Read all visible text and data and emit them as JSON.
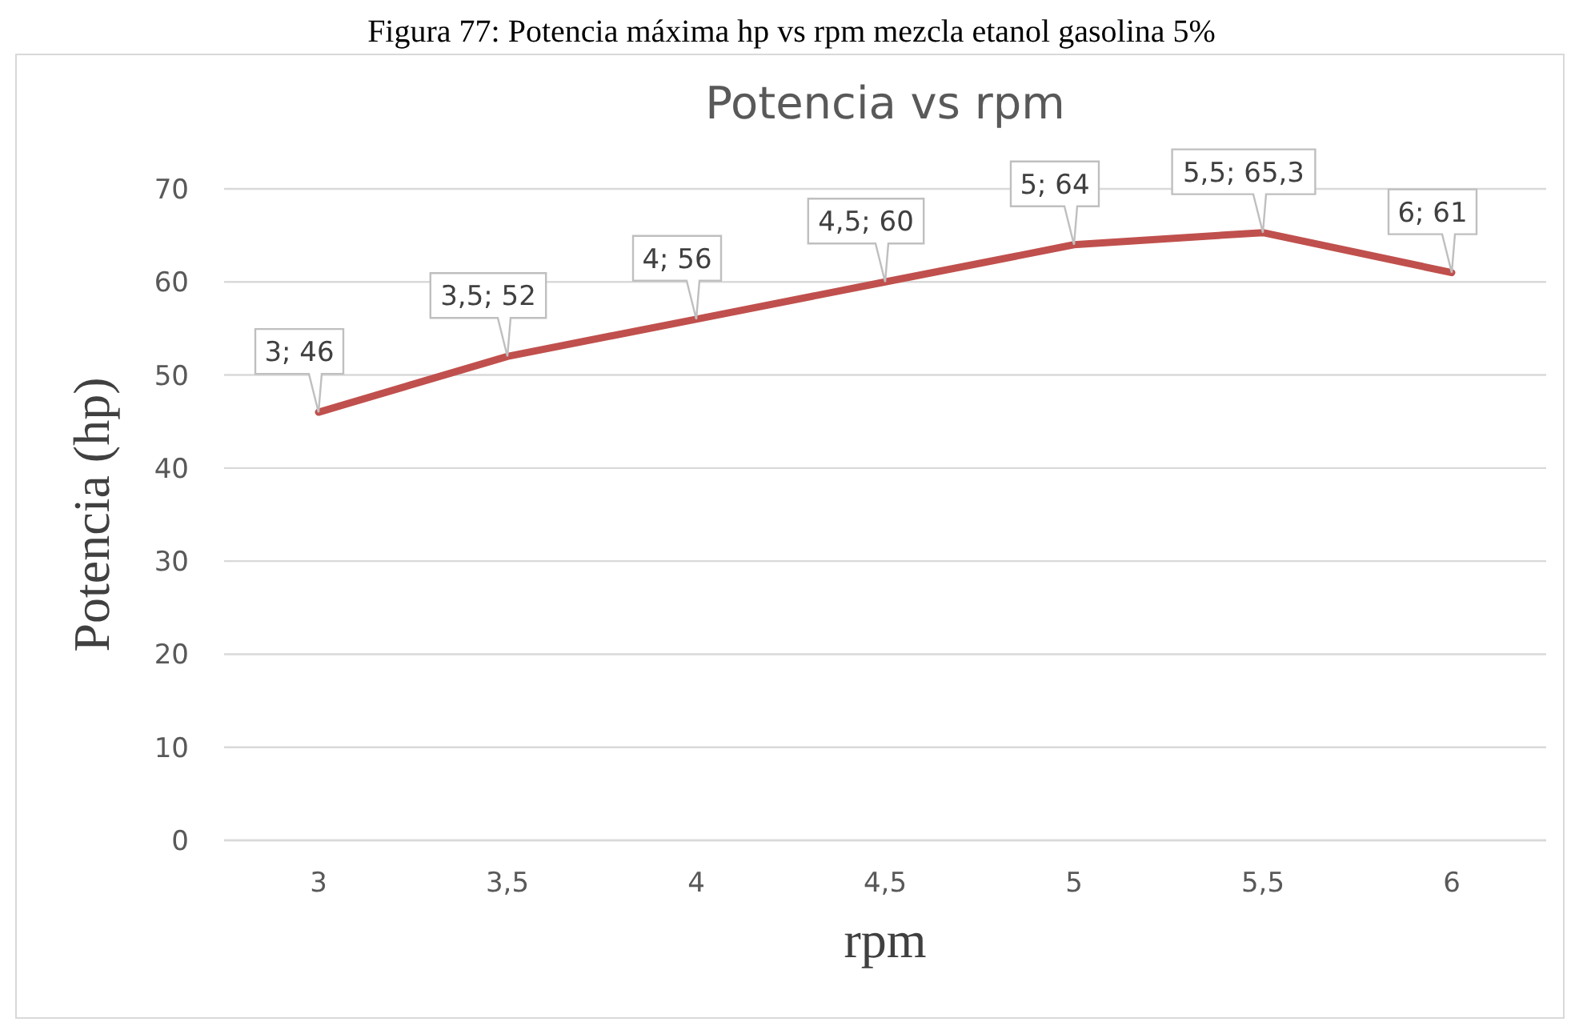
{
  "chart_data": {
    "type": "line",
    "title": "Potencia vs rpm",
    "xlabel": "rpm",
    "ylabel": "Potencia (hp)",
    "annotations": [
      "Figura 77: Potencia máxima hp vs rpm mezcla etanol gasolina 5%"
    ],
    "categories": [
      "3",
      "3,5",
      "4",
      "4,5",
      "5",
      "5,5",
      "6"
    ],
    "series": [
      {
        "color": "#c0504d",
        "values": [
          46,
          52,
          56,
          60,
          64,
          65.3,
          61
        ],
        "value_labels": [
          "3; 46",
          "3,5; 52",
          "4; 56",
          "4,5; 60",
          "5; 64",
          "5,5; 65,3",
          "6; 61"
        ]
      }
    ],
    "ylim": [
      0,
      70
    ],
    "yticks": [
      0,
      10,
      20,
      30,
      40,
      50,
      60,
      70
    ],
    "grid": "y",
    "marker": "none",
    "line_style": "solid"
  }
}
